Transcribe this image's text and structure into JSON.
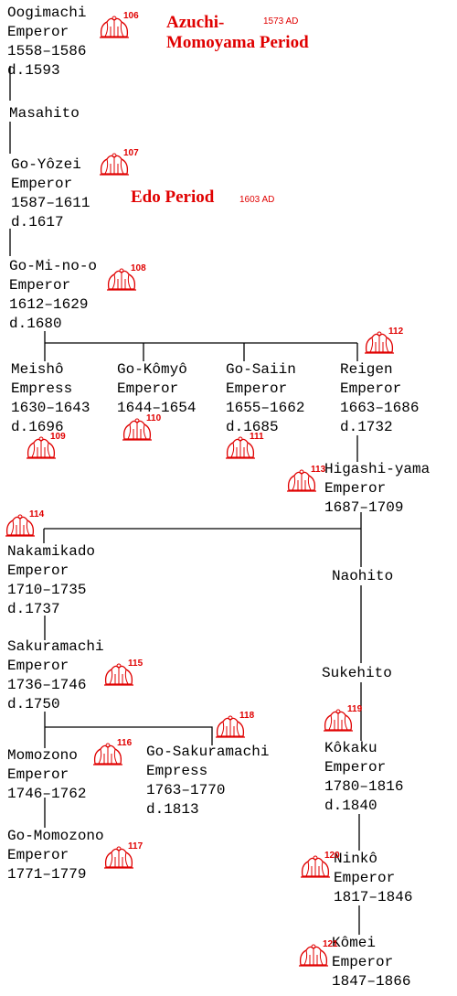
{
  "periods": [
    {
      "lines": [
        "Azuchi-",
        "Momoyama Period"
      ],
      "year": "1573 AD"
    },
    {
      "lines": [
        "Edo Period"
      ],
      "year": "1603 AD"
    }
  ],
  "nodes": [
    {
      "lines": [
        "Oogimachi",
        "Emperor",
        "1558–1586",
        "d.1593"
      ],
      "crest": "106"
    },
    {
      "lines": [
        "Masahito"
      ]
    },
    {
      "lines": [
        "Go-Yôzei",
        "Emperor",
        "1587–1611",
        "d.1617"
      ],
      "crest": "107"
    },
    {
      "lines": [
        "Go-Mi-no-o",
        "Emperor",
        "1612–1629",
        "d.1680"
      ],
      "crest": "108"
    },
    {
      "lines": [
        "Meishô",
        "Empress",
        "1630–1643",
        "d.1696"
      ],
      "crest": "109"
    },
    {
      "lines": [
        "Go-Kômyô",
        "Emperor",
        "1644–1654"
      ],
      "crest": "110"
    },
    {
      "lines": [
        "Go-Saiin",
        "Emperor",
        "1655–1662",
        "d.1685"
      ],
      "crest": "111"
    },
    {
      "lines": [
        "Reigen",
        "Emperor",
        "1663–1686",
        "d.1732"
      ],
      "crest": "112"
    },
    {
      "lines": [
        "Higashi-yama",
        "Emperor",
        "1687–1709"
      ],
      "crest": "113"
    },
    {
      "lines": [
        "Nakamikado",
        "Emperor",
        "1710–1735",
        "d.1737"
      ],
      "crest": "114"
    },
    {
      "lines": [
        "Naohito"
      ]
    },
    {
      "lines": [
        "Sakuramachi",
        "Emperor",
        "1736–1746",
        "d.1750"
      ],
      "crest": "115"
    },
    {
      "lines": [
        "Sukehito"
      ]
    },
    {
      "lines": [
        "Momozono",
        "Emperor",
        "1746–1762"
      ],
      "crest": "116"
    },
    {
      "lines": [
        "Go-Sakuramachi",
        "Empress",
        "1763–1770",
        "d.1813"
      ],
      "crest": "118"
    },
    {
      "lines": [
        "Kôkaku",
        "Emperor",
        "1780–1816",
        "d.1840"
      ],
      "crest": "119"
    },
    {
      "lines": [
        "Go-Momozono",
        "Emperor",
        "1771–1779"
      ],
      "crest": "117"
    },
    {
      "lines": [
        "Ninkô",
        "Emperor",
        "1817–1846"
      ],
      "crest": "120"
    },
    {
      "lines": [
        "Kômei",
        "Emperor",
        "1847–1866"
      ],
      "crest": "121"
    }
  ]
}
